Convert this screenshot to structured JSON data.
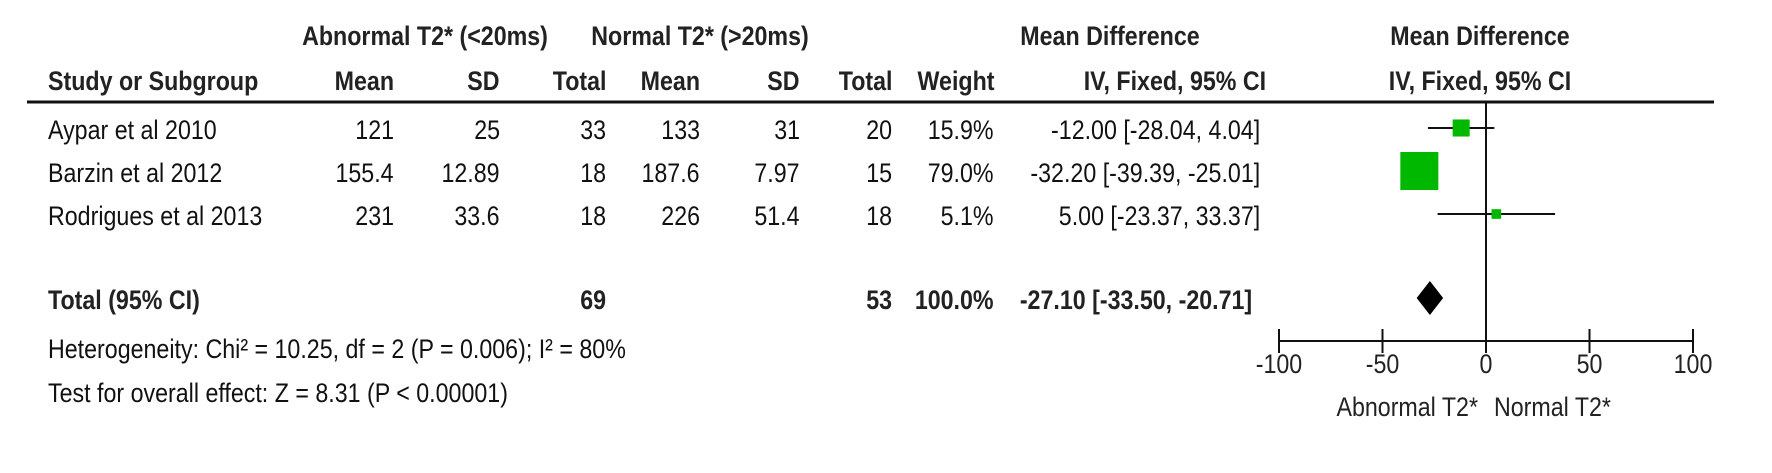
{
  "table": {
    "group_headers": {
      "experimental": "Abnormal T2* (<20ms)",
      "control": "Normal T2* (>20ms)",
      "effect": "Mean Difference",
      "plot": "Mean Difference"
    },
    "columns": {
      "study": "Study or Subgroup",
      "mean1": "Mean",
      "sd1": "SD",
      "total1": "Total",
      "mean2": "Mean",
      "sd2": "SD",
      "total2": "Total",
      "weight": "Weight",
      "ci": "IV, Fixed, 95% CI",
      "plot_ci": "IV, Fixed, 95% CI"
    },
    "rows": [
      {
        "study": "Aypar et al 2010",
        "mean1": "121",
        "sd1": "25",
        "total1": "33",
        "mean2": "133",
        "sd2": "31",
        "total2": "20",
        "weight": "15.9%",
        "ci": "-12.00 [-28.04, 4.04]"
      },
      {
        "study": "Barzin et al 2012",
        "mean1": "155.4",
        "sd1": "12.89",
        "total1": "18",
        "mean2": "187.6",
        "sd2": "7.97",
        "total2": "15",
        "weight": "79.0%",
        "ci": "-32.20 [-39.39, -25.01]"
      },
      {
        "study": "Rodrigues et al 2013",
        "mean1": "231",
        "sd1": "33.6",
        "total1": "18",
        "mean2": "226",
        "sd2": "51.4",
        "total2": "18",
        "weight": "5.1%",
        "ci": "5.00 [-23.37, 33.37]"
      }
    ],
    "total": {
      "label": "Total (95% CI)",
      "total1": "69",
      "total2": "53",
      "weight": "100.0%",
      "ci": "-27.10 [-33.50, -20.71]"
    },
    "heterogeneity": "Heterogeneity: Chi² = 10.25, df = 2 (P = 0.006); I² = 80%",
    "overall_effect": "Test for overall effect: Z = 8.31 (P < 0.00001)"
  },
  "chart_data": {
    "type": "scatter",
    "subtype": "forest",
    "xlim": [
      -100,
      100
    ],
    "x_ticks": [
      -100,
      -50,
      0,
      50,
      100
    ],
    "x_tick_labels": [
      "-100",
      "-50",
      "0",
      "50",
      "100"
    ],
    "favours_left": "Abnormal T2*",
    "favours_right": "Normal T2*",
    "marker_color": "#00b800",
    "diamond_color": "#000000",
    "studies": [
      {
        "name": "Aypar et al 2010",
        "estimate": -12.0,
        "lower": -28.04,
        "upper": 4.04,
        "weight": 15.9
      },
      {
        "name": "Barzin et al 2012",
        "estimate": -32.2,
        "lower": -39.39,
        "upper": -25.01,
        "weight": 79.0
      },
      {
        "name": "Rodrigues et al 2013",
        "estimate": 5.0,
        "lower": -23.37,
        "upper": 33.37,
        "weight": 5.1
      }
    ],
    "pooled": {
      "estimate": -27.1,
      "lower": -33.5,
      "upper": -20.71
    }
  }
}
